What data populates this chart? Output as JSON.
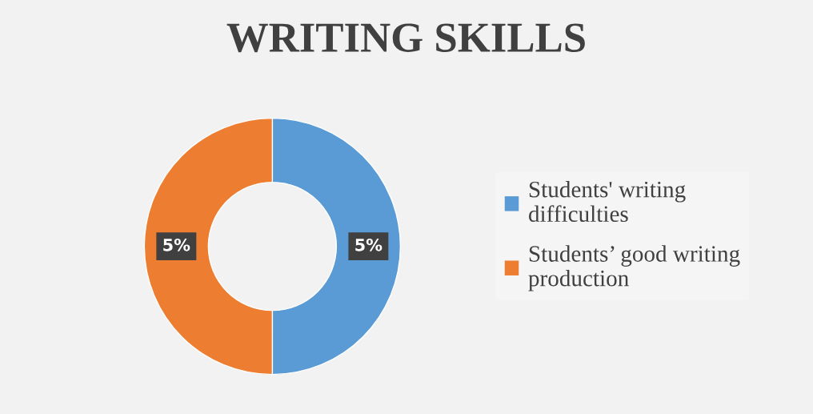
{
  "chart_data": {
    "type": "donut",
    "title": "WRITING SKILLS",
    "categories": [
      "Students' writing\ndifficulties",
      "Students’ good writing\nproduction"
    ],
    "values": [
      5,
      5
    ],
    "colors": [
      "#5b9bd5",
      "#ed7d31"
    ],
    "value_labels": [
      "5%",
      "5%"
    ],
    "legend": "right"
  }
}
